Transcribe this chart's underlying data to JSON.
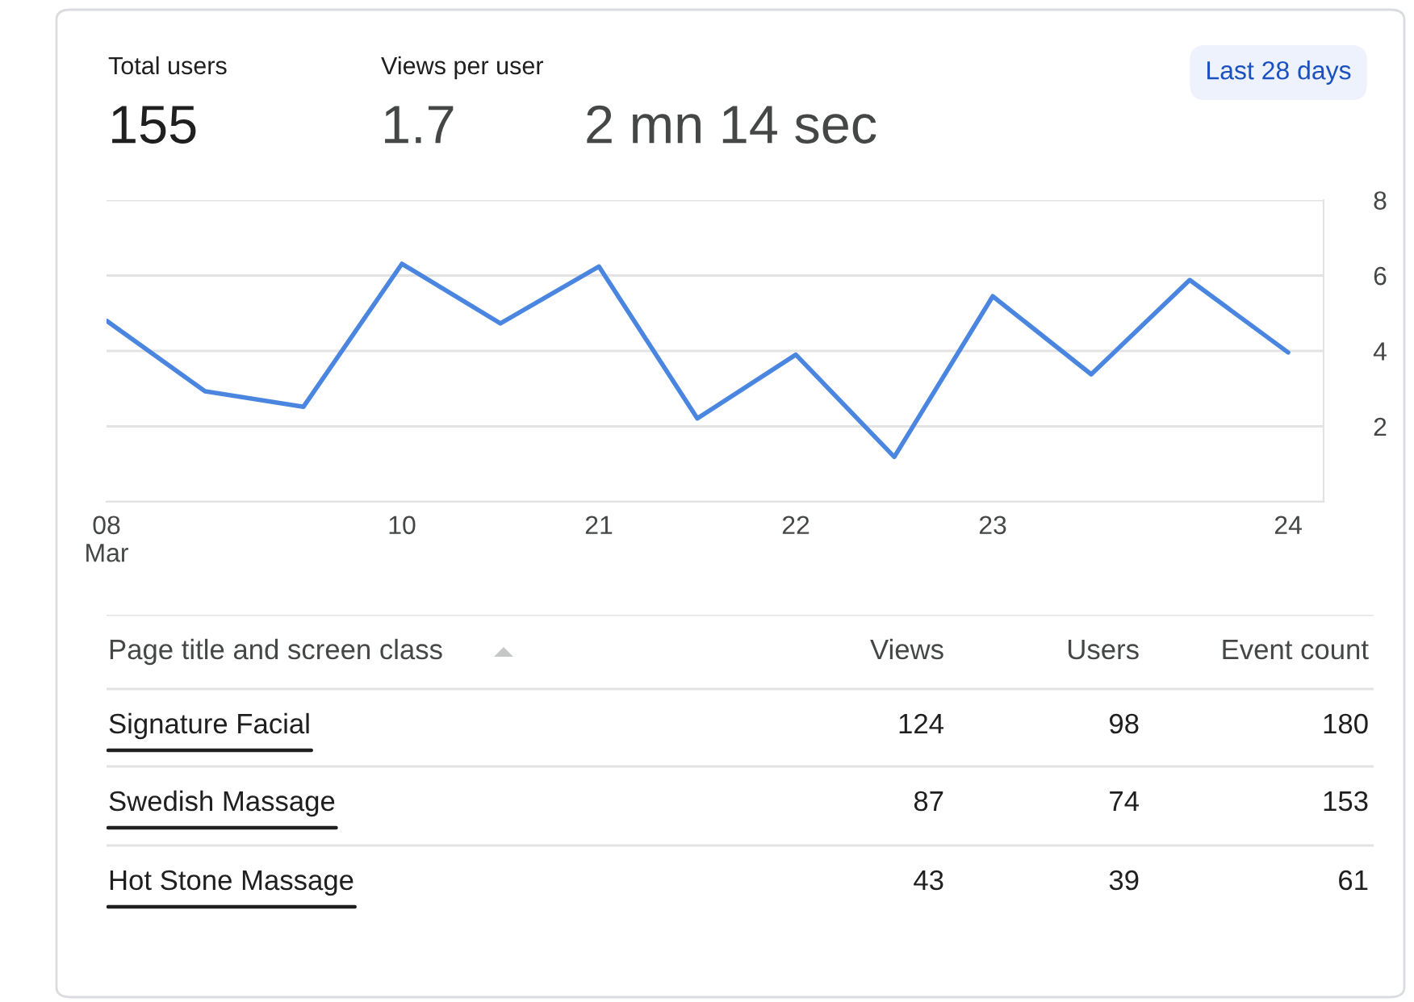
{
  "chart_data": [
    {
      "type": "line",
      "annotations": [
        "Total users",
        "155",
        "Views per user",
        "1.7",
        "2 mn 14 sec",
        "Last 28 days"
      ],
      "categories": [
        "08\nMar",
        null,
        null,
        "10",
        null,
        "21",
        null,
        "22",
        null,
        "23",
        null,
        null,
        "24"
      ],
      "series": [
        {
          "color": "#4a86e0",
          "values": [
            4.8,
            2.93,
            2.52,
            6.31,
            4.73,
            6.24,
            2.21,
            3.9,
            1.19,
            5.45,
            3.38,
            5.88,
            3.96
          ]
        }
      ],
      "ylim": [
        0,
        8
      ],
      "yticks": [
        {
          "value": 0,
          "label": null
        },
        2,
        4,
        6,
        8
      ],
      "grid": "y",
      "marker": "none",
      "line_style": "solid",
      "legend": false
    },
    {
      "type": "other",
      "title": "Page title and screen class",
      "categories": [
        "Signature Facial",
        "Swedish Massage",
        "Hot Stone Massage"
      ],
      "series": [
        {
          "name": "Views",
          "values": [
            124,
            87,
            43
          ]
        },
        {
          "name": "Users",
          "values": [
            98,
            74,
            39
          ]
        },
        {
          "name": "Event count",
          "values": [
            180,
            153,
            61
          ]
        }
      ],
      "data_labels": true
    }
  ]
}
